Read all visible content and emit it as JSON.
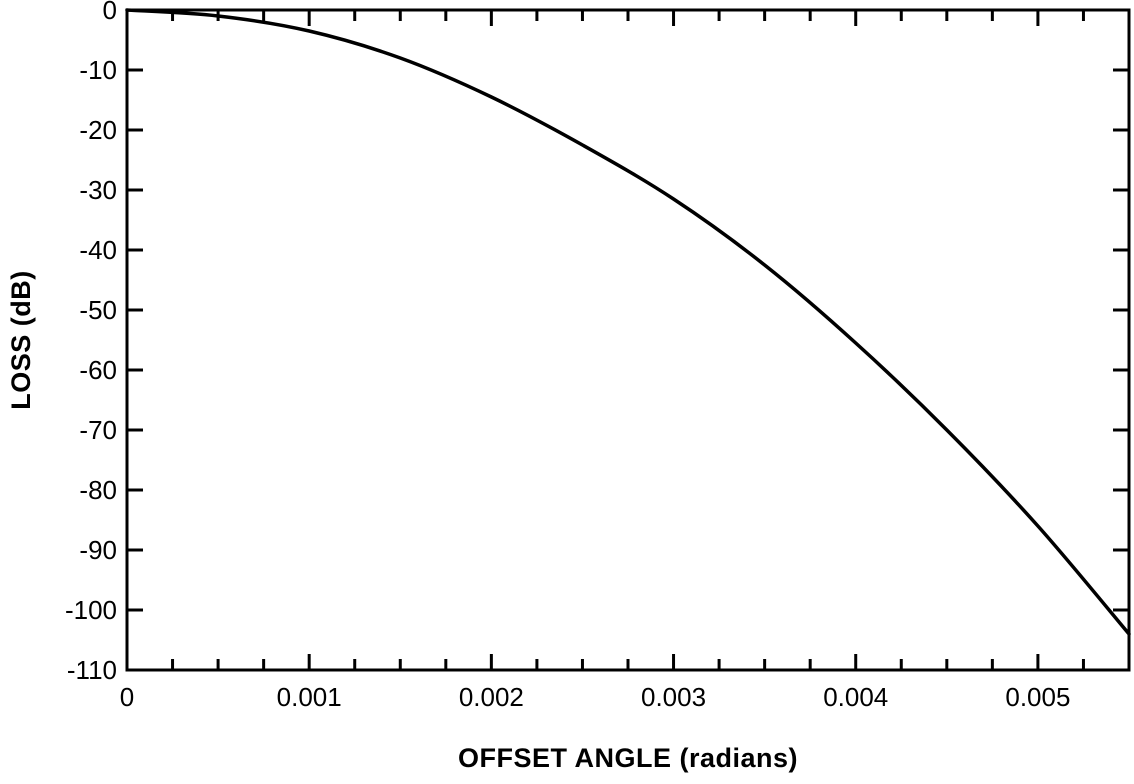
{
  "chart_data": {
    "type": "line",
    "title": "",
    "xlabel": "OFFSET ANGLE (radians)",
    "ylabel": "LOSS (dB)",
    "xlim": [
      0,
      0.0055
    ],
    "ylim": [
      -110,
      0
    ],
    "x_ticks": [
      0,
      0.001,
      0.002,
      0.003,
      0.004,
      0.005
    ],
    "x_tick_labels": [
      "0",
      "0.001",
      "0.002",
      "0.003",
      "0.004",
      "0.005"
    ],
    "x_minor_step": 0.00025,
    "y_ticks": [
      0,
      -10,
      -20,
      -30,
      -40,
      -50,
      -60,
      -70,
      -80,
      -90,
      -100,
      -110
    ],
    "y_tick_labels": [
      "0",
      "-10",
      "-20",
      "-30",
      "-40",
      "-50",
      "-60",
      "-70",
      "-80",
      "-90",
      "-100",
      "-110"
    ],
    "grid": false,
    "legend": "none",
    "series": [
      {
        "x": [
          0,
          0.0005,
          0.001,
          0.0015,
          0.002,
          0.0025,
          0.003,
          0.0035,
          0.004,
          0.0045,
          0.005,
          0.0055
        ],
        "values": [
          0,
          -1,
          -3.5,
          -8,
          -14.5,
          -22.5,
          -31.5,
          -42.5,
          -55.5,
          -70,
          -86,
          -104
        ]
      }
    ]
  }
}
